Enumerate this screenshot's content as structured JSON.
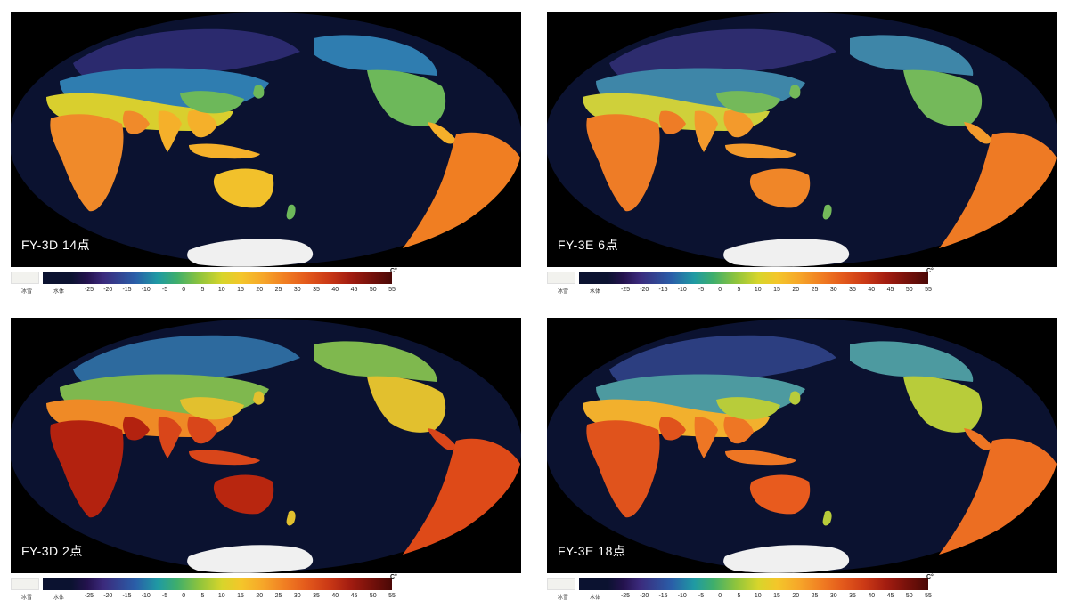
{
  "panels": [
    {
      "label": "FY-3D  14点",
      "variant": "day"
    },
    {
      "label": "FY-3E  6点",
      "variant": "morning"
    },
    {
      "label": "FY-3D  2点",
      "variant": "hot"
    },
    {
      "label": "FY-3E  18点",
      "variant": "evening"
    }
  ],
  "legend": {
    "snow_label": "冰雪",
    "water_label": "水体",
    "unit": "C°",
    "ticks": [
      "-25",
      "-20",
      "-15",
      "-10",
      "-5",
      "0",
      "5",
      "10",
      "15",
      "20",
      "25",
      "30",
      "35",
      "40",
      "45",
      "50",
      "55"
    ]
  },
  "colors": {
    "ocean": "#0b1230",
    "background": "#000000",
    "antarctica": "#f0f0f0"
  }
}
